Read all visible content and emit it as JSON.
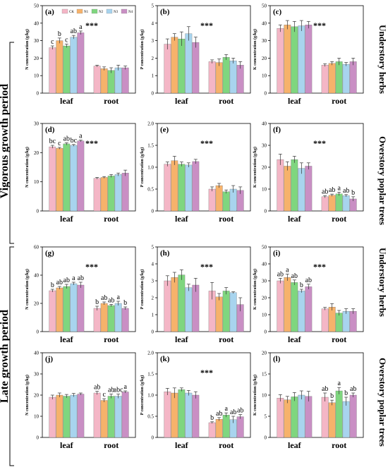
{
  "groups": [
    {
      "label": "Vigorous growth period"
    },
    {
      "label": "Late growth period"
    }
  ],
  "rows": [
    {
      "label": "Understory herbs"
    },
    {
      "label": "Overstory poplar trees"
    },
    {
      "label": "Understory herbs"
    },
    {
      "label": "Overstory poplar trees"
    }
  ],
  "legend": [
    "CK",
    "N1",
    "N2",
    "N3",
    "N4"
  ],
  "colors": {
    "CK": "#f4b6c6",
    "N1": "#f6b26b",
    "N2": "#7fd67f",
    "N3": "#a8d4ee",
    "N4": "#c98fc4"
  },
  "chart_data": [
    {
      "panel": "(a)",
      "type": "bar",
      "ylabel": "N concentration (g/kg)",
      "ylim": [
        0,
        50
      ],
      "yticks": [
        0,
        10,
        20,
        30,
        40,
        50
      ],
      "categories": [
        "leaf",
        "root"
      ],
      "stars": "***",
      "series": [
        {
          "name": "CK",
          "values": [
            26,
            15.5
          ],
          "errors": [
            1,
            0.5
          ]
        },
        {
          "name": "N1",
          "values": [
            30,
            14
          ],
          "errors": [
            1.5,
            1
          ]
        },
        {
          "name": "N2",
          "values": [
            27,
            13
          ],
          "errors": [
            1,
            1.5
          ]
        },
        {
          "name": "N3",
          "values": [
            32,
            14.5
          ],
          "errors": [
            1,
            1.5
          ]
        },
        {
          "name": "N4",
          "values": [
            34.5,
            14.5
          ],
          "errors": [
            1,
            1
          ]
        }
      ],
      "letters": [
        [
          "c",
          "b",
          "c",
          "ab",
          "a"
        ],
        [
          "",
          "",
          "",
          "",
          ""
        ]
      ]
    },
    {
      "panel": "(b)",
      "type": "bar",
      "ylabel": "P concentration (g/kg)",
      "ylim": [
        0,
        5
      ],
      "yticks": [
        0,
        1,
        2,
        3,
        4,
        5
      ],
      "categories": [
        "leaf",
        "root"
      ],
      "stars": "***",
      "series": [
        {
          "name": "CK",
          "values": [
            2.8,
            1.8
          ],
          "errors": [
            0.3,
            0.1
          ]
        },
        {
          "name": "N1",
          "values": [
            3.2,
            1.75
          ],
          "errors": [
            0.2,
            0.2
          ]
        },
        {
          "name": "N2",
          "values": [
            3.1,
            2.05
          ],
          "errors": [
            0.4,
            0.15
          ]
        },
        {
          "name": "N3",
          "values": [
            3.4,
            1.85
          ],
          "errors": [
            0.4,
            0.15
          ]
        },
        {
          "name": "N4",
          "values": [
            2.9,
            1.6
          ],
          "errors": [
            0.3,
            0.2
          ]
        }
      ],
      "letters": [
        [
          "",
          "",
          "",
          "",
          ""
        ],
        [
          "",
          "",
          "",
          "",
          ""
        ]
      ]
    },
    {
      "panel": "(c)",
      "type": "bar",
      "ylabel": "K concentration (g/kg)",
      "ylim": [
        0,
        50
      ],
      "yticks": [
        0,
        10,
        20,
        30,
        40,
        50
      ],
      "categories": [
        "leaf",
        "root"
      ],
      "stars": "***",
      "series": [
        {
          "name": "CK",
          "values": [
            37,
            16
          ],
          "errors": [
            2,
            0.8
          ]
        },
        {
          "name": "N1",
          "values": [
            39,
            17
          ],
          "errors": [
            2.5,
            1
          ]
        },
        {
          "name": "N2",
          "values": [
            38,
            18
          ],
          "errors": [
            3,
            2
          ]
        },
        {
          "name": "N3",
          "values": [
            38.5,
            16.5
          ],
          "errors": [
            3,
            1
          ]
        },
        {
          "name": "N4",
          "values": [
            39,
            18
          ],
          "errors": [
            2,
            2
          ]
        }
      ],
      "letters": [
        [
          "",
          "",
          "",
          "",
          ""
        ],
        [
          "",
          "",
          "",
          "",
          ""
        ]
      ]
    },
    {
      "panel": "(d)",
      "type": "bar",
      "ylabel": "N concentration (g/kg)",
      "ylim": [
        0,
        30
      ],
      "yticks": [
        0,
        10,
        20,
        30
      ],
      "categories": [
        "leaf",
        "root"
      ],
      "stars": "***",
      "series": [
        {
          "name": "CK",
          "values": [
            22,
            11.2
          ],
          "errors": [
            0.5,
            0.3
          ]
        },
        {
          "name": "N1",
          "values": [
            21.5,
            11.5
          ],
          "errors": [
            0.3,
            0.3
          ]
        },
        {
          "name": "N2",
          "values": [
            23,
            12
          ],
          "errors": [
            0.4,
            0.5
          ]
        },
        {
          "name": "N3",
          "values": [
            22.5,
            12.5
          ],
          "errors": [
            0.3,
            0.5
          ]
        },
        {
          "name": "N4",
          "values": [
            24,
            13
          ],
          "errors": [
            0.3,
            1
          ]
        }
      ],
      "letters": [
        [
          "bc",
          "c",
          "ab",
          "bc",
          "a"
        ],
        [
          "",
          "",
          "",
          "",
          ""
        ]
      ]
    },
    {
      "panel": "(e)",
      "type": "bar",
      "ylabel": "P concentration (g/kg)",
      "ylim": [
        0,
        2
      ],
      "yticks": [
        0,
        0.5,
        1.0,
        1.5,
        2.0
      ],
      "categories": [
        "leaf",
        "root"
      ],
      "stars": "***",
      "series": [
        {
          "name": "CK",
          "values": [
            1.07,
            0.5
          ],
          "errors": [
            0.05,
            0.05
          ]
        },
        {
          "name": "N1",
          "values": [
            1.15,
            0.58
          ],
          "errors": [
            0.1,
            0.05
          ]
        },
        {
          "name": "N2",
          "values": [
            1.07,
            0.44
          ],
          "errors": [
            0.05,
            0.04
          ]
        },
        {
          "name": "N3",
          "values": [
            1.05,
            0.5
          ],
          "errors": [
            0.05,
            0.08
          ]
        },
        {
          "name": "N4",
          "values": [
            1.13,
            0.47
          ],
          "errors": [
            0.05,
            0.08
          ]
        }
      ],
      "letters": [
        [
          "",
          "",
          "",
          "",
          ""
        ],
        [
          "",
          "",
          "",
          "",
          ""
        ]
      ]
    },
    {
      "panel": "(f)",
      "type": "bar",
      "ylabel": "K concentration (g/kg)",
      "ylim": [
        0,
        40
      ],
      "yticks": [
        0,
        10,
        20,
        30,
        40
      ],
      "categories": [
        "leaf",
        "root"
      ],
      "stars": "***",
      "series": [
        {
          "name": "CK",
          "values": [
            23.5,
            6.5
          ],
          "errors": [
            2.5,
            0.5
          ]
        },
        {
          "name": "N1",
          "values": [
            20.5,
            7.2
          ],
          "errors": [
            2,
            0.5
          ]
        },
        {
          "name": "N2",
          "values": [
            23.5,
            7.8
          ],
          "errors": [
            1.5,
            0.8
          ]
        },
        {
          "name": "N3",
          "values": [
            19.5,
            7
          ],
          "errors": [
            2.5,
            0.5
          ]
        },
        {
          "name": "N4",
          "values": [
            20.5,
            5.5
          ],
          "errors": [
            1.5,
            1
          ]
        }
      ],
      "letters": [
        [
          "",
          "",
          "",
          "",
          ""
        ],
        [
          "ab",
          "ab",
          "a",
          "ab",
          "b"
        ]
      ]
    },
    {
      "panel": "(g)",
      "type": "bar",
      "ylabel": "N concentration (g/kg)",
      "ylim": [
        0,
        60
      ],
      "yticks": [
        0,
        20,
        40,
        60
      ],
      "categories": [
        "leaf",
        "root"
      ],
      "stars": "***",
      "series": [
        {
          "name": "CK",
          "values": [
            29,
            16.5
          ],
          "errors": [
            1,
            1.5
          ]
        },
        {
          "name": "N1",
          "values": [
            31,
            20
          ],
          "errors": [
            1,
            1
          ]
        },
        {
          "name": "N2",
          "values": [
            32,
            18.5
          ],
          "errors": [
            1.5,
            0.8
          ]
        },
        {
          "name": "N3",
          "values": [
            34,
            20
          ],
          "errors": [
            1,
            1.5
          ]
        },
        {
          "name": "N4",
          "values": [
            33,
            16.5
          ],
          "errors": [
            2,
            1
          ]
        }
      ],
      "letters": [
        [
          "b",
          "ab",
          "ab",
          "a",
          "ab"
        ],
        [
          "b",
          "ab",
          "ab",
          "a",
          "b"
        ]
      ]
    },
    {
      "panel": "(h)",
      "type": "bar",
      "ylabel": "P concentration (g/kg)",
      "ylim": [
        0,
        5
      ],
      "yticks": [
        0,
        1,
        2,
        3,
        4,
        5
      ],
      "categories": [
        "leaf",
        "root"
      ],
      "stars": "***",
      "series": [
        {
          "name": "CK",
          "values": [
            3.0,
            2.4
          ],
          "errors": [
            0.3,
            0.5
          ]
        },
        {
          "name": "N1",
          "values": [
            3.2,
            2.05
          ],
          "errors": [
            0.3,
            0.2
          ]
        },
        {
          "name": "N2",
          "values": [
            3.35,
            2.4
          ],
          "errors": [
            0.3,
            0.2
          ]
        },
        {
          "name": "N3",
          "values": [
            2.6,
            2.3
          ],
          "errors": [
            0.2,
            0.05
          ]
        },
        {
          "name": "N4",
          "values": [
            2.75,
            1.6
          ],
          "errors": [
            0.4,
            0.4
          ]
        }
      ],
      "letters": [
        [
          "",
          "",
          "",
          "",
          ""
        ],
        [
          "",
          "",
          "",
          "",
          ""
        ]
      ]
    },
    {
      "panel": "(i)",
      "type": "bar",
      "ylabel": "K concentration (g/kg)",
      "ylim": [
        0,
        50
      ],
      "yticks": [
        0,
        10,
        20,
        30,
        40,
        50
      ],
      "categories": [
        "leaf",
        "root"
      ],
      "stars": "***",
      "series": [
        {
          "name": "CK",
          "values": [
            30,
            13.5
          ],
          "errors": [
            1.5,
            0.8
          ]
        },
        {
          "name": "N1",
          "values": [
            32,
            14.5
          ],
          "errors": [
            2,
            2
          ]
        },
        {
          "name": "N2",
          "values": [
            29,
            11
          ],
          "errors": [
            1.5,
            1.5
          ]
        },
        {
          "name": "N3",
          "values": [
            24,
            12
          ],
          "errors": [
            1,
            1.5
          ]
        },
        {
          "name": "N4",
          "values": [
            26.5,
            12
          ],
          "errors": [
            1.5,
            1.5
          ]
        }
      ],
      "letters": [
        [
          "ab",
          "a",
          "ab",
          "b",
          "ab"
        ],
        [
          "",
          "",
          "",
          "",
          ""
        ]
      ]
    },
    {
      "panel": "(j)",
      "type": "bar",
      "ylabel": "N concentration (g/kg)",
      "ylim": [
        0,
        40
      ],
      "yticks": [
        0,
        10,
        20,
        30,
        40
      ],
      "categories": [
        "leaf",
        "root"
      ],
      "stars": "",
      "series": [
        {
          "name": "CK",
          "values": [
            19,
            21
          ],
          "errors": [
            1,
            0.8
          ]
        },
        {
          "name": "N1",
          "values": [
            20,
            17.5
          ],
          "errors": [
            1,
            0.8
          ]
        },
        {
          "name": "N2",
          "values": [
            19.5,
            19.5
          ],
          "errors": [
            0.8,
            1
          ]
        },
        {
          "name": "N3",
          "values": [
            20,
            19.5
          ],
          "errors": [
            0.8,
            1
          ]
        },
        {
          "name": "N4",
          "values": [
            20.5,
            21.5
          ],
          "errors": [
            0.5,
            0.5
          ]
        }
      ],
      "letters": [
        [
          "",
          "",
          "",
          "",
          ""
        ],
        [
          "ab",
          "c",
          "ab",
          "abc",
          "a"
        ]
      ]
    },
    {
      "panel": "(k)",
      "type": "bar",
      "ylabel": "P concentration (g/kg)",
      "ylim": [
        0,
        2
      ],
      "yticks": [
        0,
        0.5,
        1.0,
        1.5,
        2.0
      ],
      "categories": [
        "leaf",
        "root"
      ],
      "stars": "***",
      "series": [
        {
          "name": "CK",
          "values": [
            1.08,
            0.35
          ],
          "errors": [
            0.08,
            0.02
          ]
        },
        {
          "name": "N1",
          "values": [
            1.05,
            0.43
          ],
          "errors": [
            0.12,
            0.04
          ]
        },
        {
          "name": "N2",
          "values": [
            1.13,
            0.53
          ],
          "errors": [
            0.04,
            0.05
          ]
        },
        {
          "name": "N3",
          "values": [
            1.05,
            0.42
          ],
          "errors": [
            0.06,
            0.08
          ]
        },
        {
          "name": "N4",
          "values": [
            1.0,
            0.49
          ],
          "errors": [
            0.08,
            0.05
          ]
        }
      ],
      "letters": [
        [
          "",
          "",
          "",
          "",
          ""
        ],
        [
          "b",
          "ab",
          "a",
          "ab",
          "ab"
        ]
      ]
    },
    {
      "panel": "(l)",
      "type": "bar",
      "ylabel": "K concentration (g/kg)",
      "ylim": [
        0,
        20
      ],
      "yticks": [
        0,
        5,
        10,
        15,
        20
      ],
      "categories": [
        "leaf",
        "root"
      ],
      "stars": "",
      "series": [
        {
          "name": "CK",
          "values": [
            9.3,
            9.5
          ],
          "errors": [
            0.8,
            1
          ]
        },
        {
          "name": "N1",
          "values": [
            8.9,
            8.2
          ],
          "errors": [
            0.8,
            0.6
          ]
        },
        {
          "name": "N2",
          "values": [
            9.6,
            11
          ],
          "errors": [
            1,
            0.8
          ]
        },
        {
          "name": "N3",
          "values": [
            10,
            8.5
          ],
          "errors": [
            1,
            1
          ]
        },
        {
          "name": "N4",
          "values": [
            9.7,
            10
          ],
          "errors": [
            1.2,
            0.5
          ]
        }
      ],
      "letters": [
        [
          "",
          "",
          "",
          "",
          ""
        ],
        [
          "ab",
          "b",
          "a",
          "b",
          "ab"
        ]
      ]
    }
  ]
}
